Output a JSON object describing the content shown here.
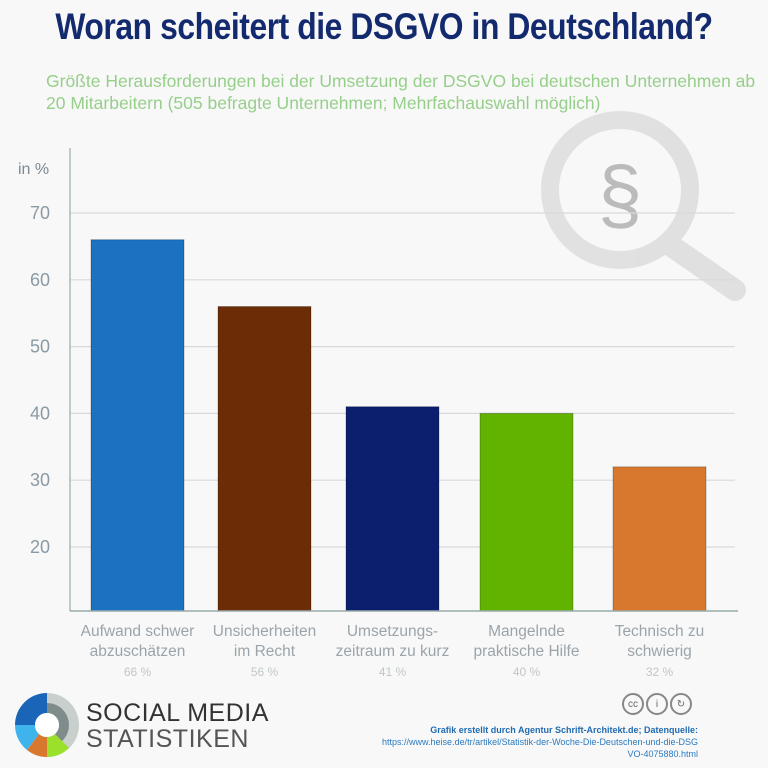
{
  "title": "Woran scheitert die DSGVO in Deutschland?",
  "subtitle": "Größte Herausforderungen bei der Umsetzung der DSGVO bei deutschen Unternehmen ab 20 Mitarbeitern (505 befragte Unternehmen; Mehrfachauswahl möglich)",
  "chart_data": {
    "type": "bar",
    "ylabel": "in %",
    "ylim": [
      10.6,
      72
    ],
    "yticks": [
      20,
      30,
      40,
      50,
      60,
      70
    ],
    "grid": true,
    "categories": [
      "Aufwand schwer abzuschätzen",
      "Unsicherheiten im Recht",
      "Umsetzungs-zeitraum zu kurz",
      "Mangelnde praktische Hilfe",
      "Technisch zu schwierig"
    ],
    "category_lines": [
      [
        "Aufwand schwer",
        "abzuschätzen"
      ],
      [
        "Unsicherheiten",
        "im Recht"
      ],
      [
        "Umsetzungs-",
        "zeitraum zu kurz"
      ],
      [
        "Mangelnde",
        "praktische Hilfe"
      ],
      [
        "Technisch zu",
        "schwierig"
      ]
    ],
    "values": [
      66,
      56,
      41,
      40,
      32
    ],
    "data_labels": [
      "66 %",
      "56 %",
      "41 %",
      "40 %",
      "32 %"
    ],
    "colors": [
      "#1a72c0",
      "#6c2c05",
      "#0b1f6e",
      "#62b300",
      "#d8782e"
    ]
  },
  "logo": {
    "line1": "SOCIAL MEDIA",
    "line2": "STATISTIKEN"
  },
  "credit": {
    "line1": "Grafik erstellt durch Agentur Schrift-Architekt.de; Datenquelle:",
    "line2": "https://www.heise.de/tr/artikel/Statistik-der-Woche-Die-Deutschen-und-die-DSG",
    "line3": "VO-4075880.html"
  },
  "license_icons": [
    "cc",
    "by",
    "sa"
  ]
}
